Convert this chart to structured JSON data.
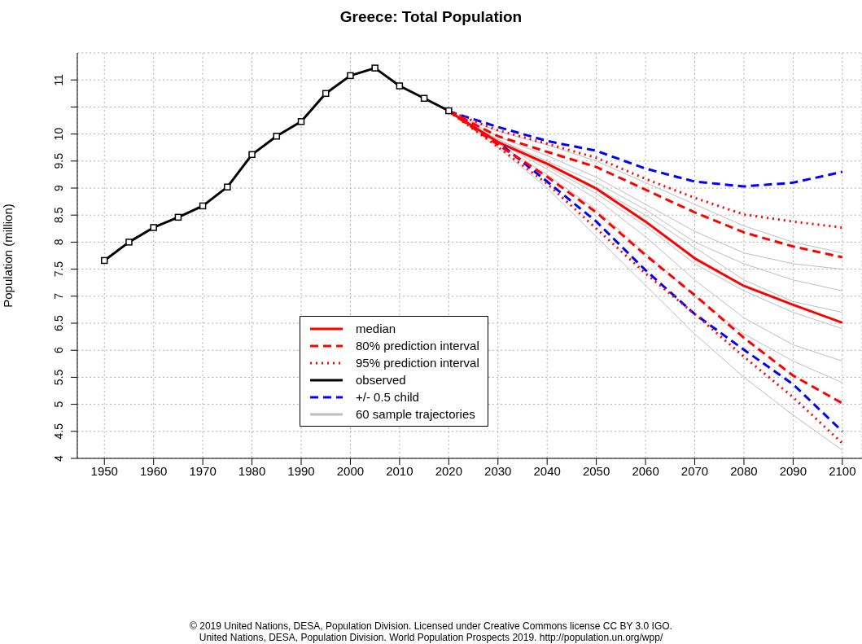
{
  "chart_data": {
    "type": "line",
    "title": "Greece: Total Population",
    "ylabel": "Population (million)",
    "xlim": [
      1944.5,
      2104
    ],
    "xticks": [
      1950,
      1960,
      1970,
      1980,
      1990,
      2000,
      2010,
      2020,
      2030,
      2040,
      2050,
      2060,
      2070,
      2080,
      2090,
      2100
    ],
    "ylim": [
      4,
      11.5
    ],
    "yticks": [
      4,
      4.5,
      5,
      5.5,
      6,
      6.5,
      7,
      7.5,
      8,
      8.5,
      9,
      9.5,
      10,
      {
        "value": 10.5,
        "label": null
      },
      11
    ],
    "grid": true,
    "legend": "left",
    "annotations": [
      "© 2019 United Nations, DESA, Population Division. Licensed under Creative Commons license CC BY 3.0 IGO.",
      "United Nations, DESA, Population Division. World Population Prospects 2019. http://population.un.org/wpp/"
    ],
    "series": [
      {
        "name": "median",
        "color": "#ff0000",
        "line_style": "solid",
        "x": [
          2020,
          2030,
          2040,
          2050,
          2060,
          2070,
          2080,
          2090,
          2100
        ],
        "values": [
          10.42,
          9.85,
          9.45,
          8.99,
          8.38,
          7.7,
          7.19,
          6.84,
          6.51
        ]
      },
      {
        "name": "80% prediction interval",
        "color": "#ff0000",
        "line_style": "dashed",
        "x": [
          2020,
          2030,
          2040,
          2050,
          2060,
          2070,
          2080,
          2090,
          2100
        ],
        "values": [
          10.42,
          9.96,
          9.67,
          9.39,
          8.97,
          8.55,
          8.18,
          7.92,
          7.72
        ]
      },
      {
        "color": "#ff0000",
        "line_style": "dashed",
        "x": [
          2020,
          2030,
          2040,
          2050,
          2060,
          2070,
          2080,
          2090,
          2100
        ],
        "values": [
          10.42,
          9.8,
          9.21,
          8.55,
          7.76,
          7.02,
          6.23,
          5.53,
          5.02
        ]
      },
      {
        "name": "95% prediction interval",
        "color": "#ff0000",
        "line_style": "dotted",
        "x": [
          2020,
          2030,
          2040,
          2050,
          2060,
          2070,
          2080,
          2090,
          2100
        ],
        "values": [
          10.42,
          10.07,
          9.82,
          9.56,
          9.17,
          8.82,
          8.51,
          8.38,
          8.27
        ]
      },
      {
        "color": "#ff0000",
        "line_style": "dotted",
        "x": [
          2020,
          2030,
          2040,
          2050,
          2060,
          2070,
          2080,
          2090,
          2100
        ],
        "values": [
          10.42,
          9.76,
          9.08,
          8.25,
          7.42,
          6.67,
          5.88,
          5.13,
          4.28
        ]
      },
      {
        "name": "observed",
        "color": "#000000",
        "line_style": "solid",
        "marker": "square",
        "x": [
          1950,
          1955,
          1960,
          1965,
          1970,
          1975,
          1980,
          1985,
          1990,
          1995,
          2000,
          2005,
          2010,
          2015,
          2020
        ],
        "values": [
          7.66,
          8.0,
          8.27,
          8.46,
          8.67,
          9.02,
          9.62,
          9.96,
          10.23,
          10.75,
          11.08,
          11.22,
          10.89,
          10.66,
          10.43
        ]
      },
      {
        "name": "+/- 0.5 child",
        "color": "#0000ff",
        "line_style": "dashed",
        "x": [
          2020,
          2030,
          2040,
          2050,
          2060,
          2070,
          2080,
          2090,
          2100
        ],
        "values": [
          10.42,
          10.13,
          9.87,
          9.69,
          9.36,
          9.12,
          9.03,
          9.1,
          9.3
        ]
      },
      {
        "color": "#0000ff",
        "line_style": "dashed",
        "x": [
          2020,
          2030,
          2040,
          2050,
          2060,
          2070,
          2080,
          2090,
          2100
        ],
        "values": [
          10.42,
          9.85,
          9.12,
          8.38,
          7.48,
          6.67,
          6.01,
          5.37,
          4.5
        ]
      },
      {
        "name": "60 sample trajectories",
        "color": "#bebebe",
        "line_style": "solid",
        "x": [
          2020,
          2030,
          2040,
          2050,
          2060,
          2070,
          2080,
          2090,
          2100
        ],
        "values": [
          10.42,
          10.05,
          9.8,
          9.5,
          9.1,
          8.7,
          8.3,
          8.0,
          7.8
        ]
      },
      {
        "color": "#bebebe",
        "line_style": "solid",
        "x": [
          2020,
          2030,
          2040,
          2050,
          2060,
          2070,
          2080,
          2090,
          2100
        ],
        "values": [
          10.42,
          9.95,
          9.6,
          9.2,
          8.7,
          8.2,
          7.8,
          7.6,
          7.5
        ]
      },
      {
        "color": "#bebebe",
        "line_style": "solid",
        "x": [
          2020,
          2030,
          2040,
          2050,
          2060,
          2070,
          2080,
          2090,
          2100
        ],
        "values": [
          10.42,
          9.9,
          9.5,
          9.1,
          8.6,
          8.0,
          7.6,
          7.3,
          7.1
        ]
      },
      {
        "color": "#bebebe",
        "line_style": "solid",
        "x": [
          2020,
          2030,
          2040,
          2050,
          2060,
          2070,
          2080,
          2090,
          2100
        ],
        "values": [
          10.42,
          9.9,
          9.45,
          9.0,
          8.5,
          7.9,
          7.3,
          6.9,
          6.7
        ]
      },
      {
        "color": "#bebebe",
        "line_style": "solid",
        "x": [
          2020,
          2030,
          2040,
          2050,
          2060,
          2070,
          2080,
          2090,
          2100
        ],
        "values": [
          10.42,
          9.88,
          9.4,
          8.9,
          8.3,
          7.6,
          7.1,
          6.7,
          6.4
        ]
      },
      {
        "color": "#bebebe",
        "line_style": "solid",
        "x": [
          2020,
          2030,
          2040,
          2050,
          2060,
          2070,
          2080,
          2090,
          2100
        ],
        "values": [
          10.42,
          9.85,
          9.35,
          8.8,
          8.1,
          7.3,
          6.6,
          6.1,
          5.8
        ]
      },
      {
        "color": "#bebebe",
        "line_style": "solid",
        "x": [
          2020,
          2030,
          2040,
          2050,
          2060,
          2070,
          2080,
          2090,
          2100
        ],
        "values": [
          10.42,
          9.82,
          9.25,
          8.6,
          7.8,
          7.0,
          6.3,
          5.8,
          5.4
        ]
      },
      {
        "color": "#bebebe",
        "line_style": "solid",
        "x": [
          2020,
          2030,
          2040,
          2050,
          2060,
          2070,
          2080,
          2090,
          2100
        ],
        "values": [
          10.42,
          9.75,
          9.0,
          8.1,
          7.2,
          6.3,
          5.5,
          4.8,
          4.15
        ]
      }
    ]
  }
}
